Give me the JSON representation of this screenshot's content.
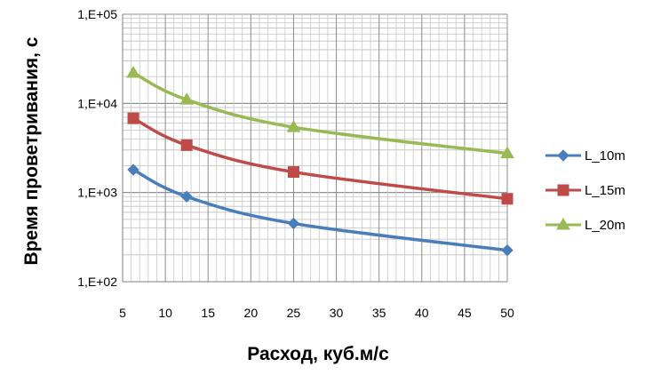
{
  "chart_data": {
    "type": "line",
    "xlabel": "Расход, куб.м/с",
    "ylabel": "Время проветривания, с",
    "x_scale": "linear",
    "y_scale": "log",
    "xlim": [
      5,
      50
    ],
    "ylim": [
      100,
      100000
    ],
    "x_ticks": [
      5,
      10,
      15,
      20,
      25,
      30,
      35,
      40,
      45,
      50
    ],
    "x_tick_labels": [
      "5",
      "10",
      "15",
      "20",
      "25",
      "30",
      "35",
      "40",
      "45",
      "50"
    ],
    "y_ticks": [
      100,
      1000,
      10000,
      100000
    ],
    "y_tick_labels": [
      "1,E+02",
      "1,E+03",
      "1,E+04",
      "1,E+05"
    ],
    "grid": "major and minor, both axes",
    "legend_position": "right",
    "smooth": true,
    "x": [
      6.25,
      12.5,
      25,
      50
    ],
    "series": [
      {
        "name": "L_10m",
        "values": [
          1800,
          900,
          450,
          225
        ],
        "color": "#4a7ebb",
        "marker": "diamond"
      },
      {
        "name": "L_15m",
        "values": [
          6800,
          3400,
          1700,
          850
        ],
        "color": "#be4b48",
        "marker": "square"
      },
      {
        "name": "L_20m",
        "values": [
          22000,
          11000,
          5400,
          2750
        ],
        "color": "#98b954",
        "marker": "triangle"
      }
    ]
  }
}
